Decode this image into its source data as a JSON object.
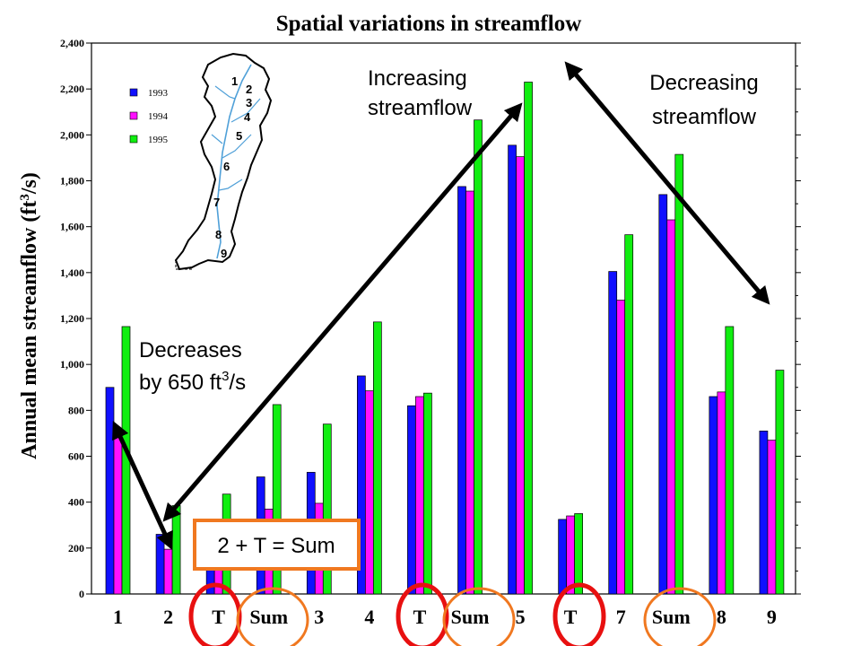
{
  "colors": {
    "series_1993": "#1010ff",
    "series_1994": "#ff10ff",
    "series_1995": "#10ee10",
    "circle_red": "#e81010",
    "circle_orange": "#f07820",
    "box_border": "#f07820",
    "arrow": "#000000"
  },
  "chart_data": {
    "type": "bar",
    "title": "Spatial variations in streamflow",
    "ylabel": "Annual mean streamflow (ft",
    "ylabel_sup": "3",
    "ylabel_end": "/s)",
    "xlabel": "",
    "ylim": [
      0,
      2400
    ],
    "yticks": [
      "0",
      "200",
      "400",
      "600",
      "800",
      "1,000",
      "1,200",
      "1,400",
      "1,600",
      "1,800",
      "2,000",
      "2,200",
      "2,400"
    ],
    "ytick_values": [
      0,
      200,
      400,
      600,
      800,
      1000,
      1200,
      1400,
      1600,
      1800,
      2000,
      2200,
      2400
    ],
    "categories": [
      "1",
      "2",
      "T",
      "Sum",
      "3",
      "4",
      "T",
      "Sum",
      "5",
      "T",
      "7",
      "Sum",
      "8",
      "9"
    ],
    "series": [
      {
        "name": "1993",
        "values": [
          900,
          260,
          230,
          510,
          530,
          950,
          820,
          1775,
          1955,
          325,
          1405,
          1740,
          860,
          710
        ]
      },
      {
        "name": "1994",
        "values": [
          710,
          195,
          175,
          370,
          395,
          885,
          860,
          1755,
          1905,
          340,
          1280,
          1630,
          880,
          670
        ]
      },
      {
        "name": "1995",
        "values": [
          1165,
          385,
          435,
          825,
          740,
          1185,
          875,
          2065,
          2230,
          350,
          1565,
          1915,
          1165,
          975
        ]
      }
    ],
    "legend_position": "top-left",
    "grid": false
  },
  "annotations": {
    "decreases_line1": "Decreases",
    "decreases_line2": "by 650 ft",
    "decreases_sup": "3",
    "decreases_end": "/s",
    "increasing_line1": "Increasing",
    "increasing_line2": "streamflow",
    "decreasing_line1": "Decreasing",
    "decreasing_line2": "streamflow",
    "box_text": "2 + T = Sum"
  },
  "map_inset": {
    "site_labels": [
      "1",
      "2",
      "3",
      "4",
      "5",
      "6",
      "7",
      "8",
      "9"
    ]
  }
}
